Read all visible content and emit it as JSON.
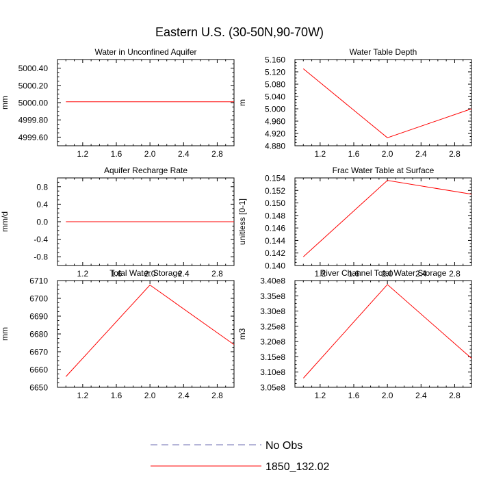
{
  "figure": {
    "title": "Eastern U.S. (30-50N,90-70W)"
  },
  "legend": {
    "items": [
      {
        "label": "No Obs",
        "color": "#6b6bb0",
        "dash": true
      },
      {
        "label": "1850_132.02",
        "color": "#ff0000",
        "dash": false
      }
    ]
  },
  "chart_data": [
    {
      "type": "line",
      "title": "Water in Unconfined Aquifer",
      "xlabel": "",
      "ylabel": "mm",
      "xlim": [
        0.9,
        3.0
      ],
      "ylim": [
        4999.5,
        5000.5
      ],
      "xticks": [
        1.2,
        1.6,
        2.0,
        2.4,
        2.8
      ],
      "xtick_labels": [
        "1.2",
        "1.6",
        "2.0",
        "2.4",
        "2.8"
      ],
      "yticks": [
        4999.6,
        4999.8,
        5000.0,
        5000.2,
        5000.4
      ],
      "ytick_labels": [
        "4999.60",
        "4999.80",
        "5000.00",
        "5000.20",
        "5000.40"
      ],
      "series": [
        {
          "name": "1850_132.02",
          "color": "#ff0000",
          "x": [
            1.0,
            2.0,
            3.0
          ],
          "y": [
            5000.01,
            5000.01,
            5000.01
          ]
        }
      ]
    },
    {
      "type": "line",
      "title": "Water Table Depth",
      "xlabel": "",
      "ylabel": "m",
      "xlim": [
        0.9,
        3.0
      ],
      "ylim": [
        4.88,
        5.16
      ],
      "xticks": [
        1.2,
        1.6,
        2.0,
        2.4,
        2.8
      ],
      "xtick_labels": [
        "1.2",
        "1.6",
        "2.0",
        "2.4",
        "2.8"
      ],
      "yticks": [
        4.88,
        4.92,
        4.96,
        5.0,
        5.04,
        5.08,
        5.12,
        5.16
      ],
      "ytick_labels": [
        "4.880",
        "4.920",
        "4.960",
        "5.000",
        "5.040",
        "5.080",
        "5.120",
        "5.160"
      ],
      "series": [
        {
          "name": "1850_132.02",
          "color": "#ff0000",
          "x": [
            1.0,
            2.0,
            3.0
          ],
          "y": [
            5.13,
            4.906,
            5.0
          ]
        }
      ]
    },
    {
      "type": "line",
      "title": "Aquifer Recharge Rate",
      "xlabel": "",
      "ylabel": "mm/d",
      "xlim": [
        0.9,
        3.0
      ],
      "ylim": [
        -1.0,
        1.0
      ],
      "xticks": [
        1.2,
        1.6,
        2.0,
        2.4,
        2.8
      ],
      "xtick_labels": [
        "1.2",
        "1.6",
        "2.0",
        "2.4",
        "2.8"
      ],
      "yticks": [
        -0.8,
        -0.4,
        0.0,
        0.4,
        0.8
      ],
      "ytick_labels": [
        "-0.8",
        "-0.4",
        "0.0",
        "0.4",
        "0.8"
      ],
      "series": [
        {
          "name": "1850_132.02",
          "color": "#ff0000",
          "x": [
            1.0,
            2.0,
            3.0
          ],
          "y": [
            0.0,
            0.0,
            0.0
          ]
        }
      ]
    },
    {
      "type": "line",
      "title": "Frac Water Table at Surface",
      "xlabel": "",
      "ylabel": "unitless [0-1]",
      "xlim": [
        0.9,
        3.0
      ],
      "ylim": [
        0.14,
        0.154
      ],
      "xticks": [
        1.2,
        1.6,
        2.0,
        2.4,
        2.8
      ],
      "xtick_labels": [
        "1.2",
        "1.6",
        "2.0",
        "2.4",
        "2.8"
      ],
      "yticks": [
        0.14,
        0.142,
        0.144,
        0.146,
        0.148,
        0.15,
        0.152,
        0.154
      ],
      "ytick_labels": [
        "0.140",
        "0.142",
        "0.144",
        "0.146",
        "0.148",
        "0.150",
        "0.152",
        "0.154"
      ],
      "series": [
        {
          "name": "1850_132.02",
          "color": "#ff0000",
          "x": [
            1.0,
            2.0,
            3.0
          ],
          "y": [
            0.1414,
            0.1536,
            0.1514
          ]
        }
      ]
    },
    {
      "type": "line",
      "title": "Total Water Storage",
      "xlabel": "",
      "ylabel": "mm",
      "xlim": [
        0.9,
        3.0
      ],
      "ylim": [
        6650,
        6710
      ],
      "xticks": [
        1.2,
        1.6,
        2.0,
        2.4,
        2.8
      ],
      "xtick_labels": [
        "1.2",
        "1.6",
        "2.0",
        "2.4",
        "2.8"
      ],
      "yticks": [
        6650,
        6660,
        6670,
        6680,
        6690,
        6700,
        6710
      ],
      "ytick_labels": [
        "6650",
        "6660",
        "6670",
        "6680",
        "6690",
        "6700",
        "6710"
      ],
      "series": [
        {
          "name": "1850_132.02",
          "color": "#ff0000",
          "x": [
            1.0,
            2.0,
            3.0
          ],
          "y": [
            6656,
            6707.5,
            6674
          ]
        }
      ]
    },
    {
      "type": "line",
      "title": "River Channel Total Water Storage",
      "xlabel": "",
      "ylabel": "m3",
      "xlim": [
        0.9,
        3.0
      ],
      "ylim": [
        305000000,
        340000000
      ],
      "xticks": [
        1.2,
        1.6,
        2.0,
        2.4,
        2.8
      ],
      "xtick_labels": [
        "1.2",
        "1.6",
        "2.0",
        "2.4",
        "2.8"
      ],
      "yticks": [
        305000000,
        310000000,
        315000000,
        320000000,
        325000000,
        330000000,
        335000000,
        340000000
      ],
      "ytick_labels": [
        "3.05e8",
        "3.10e8",
        "3.15e8",
        "3.20e8",
        "3.25e8",
        "3.30e8",
        "3.35e8",
        "3.40e8"
      ],
      "series": [
        {
          "name": "1850_132.02",
          "color": "#ff0000",
          "x": [
            1.0,
            2.0,
            3.0
          ],
          "y": [
            308000000,
            338700000,
            314500000
          ]
        }
      ]
    }
  ]
}
